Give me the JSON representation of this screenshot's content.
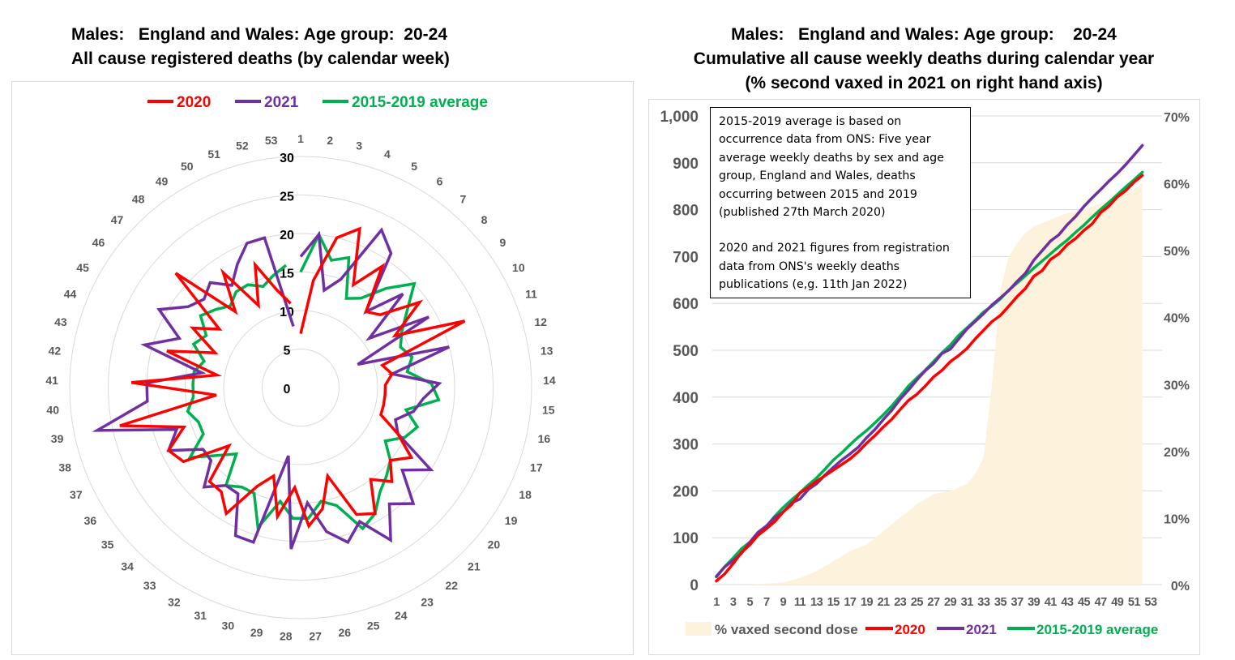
{
  "left_chart": {
    "title_line1": "Males:   England and Wales: Age group:  20-24",
    "title_line2": "All cause registered deaths (by calendar week)"
  },
  "right_chart": {
    "title_line1": "Males:   England and Wales: Age group:    20-24",
    "title_line2": "Cumulative all cause weekly deaths during calendar year",
    "title_line3": "(% second vaxed in 2021 on right hand axis)",
    "note_para1": "2015-2019 average is based on occurrence data from ONS: Five year average weekly deaths by sex and age group, England and Wales, deaths occurring between 2015 and 2019 (published 27th March 2020)",
    "note_para2": "2020 and 2021 figures from registration data from ONS's weekly deaths publications (e,g. 11th Jan 2022)"
  },
  "colors": {
    "2020": "#ff0000",
    "2021": "#7030a0",
    "avg": "#00b050",
    "vax_area": "#fdf3dc",
    "grid": "#d9d9d9",
    "tick": "#595959"
  },
  "chart_data": [
    {
      "type": "radar",
      "title": "Males: England and Wales: Age group: 20-24 — All cause registered deaths (by calendar week)",
      "legend": [
        "2020",
        "2021",
        "2015-2019 average"
      ],
      "legend_position": "top",
      "categories": [
        "1",
        "2",
        "3",
        "4",
        "5",
        "6",
        "7",
        "8",
        "9",
        "10",
        "11",
        "12",
        "13",
        "14",
        "15",
        "16",
        "17",
        "18",
        "19",
        "20",
        "21",
        "22",
        "23",
        "24",
        "25",
        "26",
        "27",
        "28",
        "29",
        "30",
        "31",
        "32",
        "33",
        "34",
        "35",
        "36",
        "37",
        "38",
        "39",
        "40",
        "41",
        "42",
        "43",
        "44",
        "45",
        "46",
        "47",
        "48",
        "49",
        "50",
        "51",
        "52",
        "53"
      ],
      "radial_ticks": [
        "0",
        "5",
        "10",
        "15",
        "20",
        "25",
        "30"
      ],
      "rlim": [
        0,
        30
      ],
      "series": [
        {
          "name": "2020",
          "key": "2020",
          "values": [
            7,
            14,
            20,
            22,
            15,
            19,
            13,
            14,
            19,
            14,
            23,
            11,
            12,
            11,
            11,
            11,
            11,
            14,
            17,
            15,
            17,
            15,
            19,
            18,
            12,
            16,
            18,
            13,
            17,
            12,
            14,
            19,
            17,
            17,
            12,
            18,
            19,
            16,
            24,
            11,
            22,
            11,
            18,
            12,
            16,
            13,
            22,
            13,
            18,
            12,
            17,
            13,
            11
          ]
        },
        {
          "name": "2021",
          "key": "2021",
          "values": [
            17,
            20,
            13,
            15,
            23,
            21,
            13,
            18,
            11,
            19,
            8,
            20,
            12,
            18,
            16,
            15,
            13,
            14,
            20,
            17,
            21,
            19,
            23,
            19,
            21,
            19,
            15,
            21,
            9,
            21,
            21,
            16,
            16,
            18,
            15,
            15,
            19,
            17,
            27,
            20,
            20,
            13,
            21,
            17,
            21,
            18,
            17,
            18,
            16,
            18,
            20,
            20,
            8
          ]
        },
        {
          "name": "2015-2019 average",
          "key": "avg",
          "values": [
            15,
            20,
            17,
            18,
            13,
            14,
            17,
            20,
            17,
            15,
            14,
            15,
            14,
            17,
            18,
            14,
            16,
            15,
            13,
            15,
            16,
            17,
            19,
            20,
            16,
            15,
            17,
            17,
            15,
            19,
            15,
            15,
            16,
            12,
            14,
            17,
            14,
            14,
            15,
            14,
            14,
            14,
            13,
            15,
            14,
            16,
            15,
            14,
            15,
            15,
            14,
            15,
            16
          ]
        }
      ]
    },
    {
      "type": "line+area",
      "title": "Males: England and Wales: Age group: 20-24 — Cumulative all cause weekly deaths during calendar year (% second vaxed in 2021 on right hand axis)",
      "xlabel": "",
      "ylabel": "",
      "y2label": "",
      "x_ticks": [
        "1",
        "3",
        "5",
        "7",
        "9",
        "11",
        "13",
        "15",
        "17",
        "19",
        "21",
        "23",
        "25",
        "27",
        "29",
        "31",
        "33",
        "35",
        "37",
        "39",
        "41",
        "43",
        "45",
        "47",
        "49",
        "51",
        "53"
      ],
      "y_ticks": [
        "0",
        "100",
        "200",
        "300",
        "400",
        "500",
        "600",
        "700",
        "800",
        "900",
        "1,000"
      ],
      "y2_ticks": [
        "0%",
        "10%",
        "20%",
        "30%",
        "40%",
        "50%",
        "60%",
        "70%"
      ],
      "ylim": [
        0,
        1000
      ],
      "y2lim": [
        0,
        0.7
      ],
      "grid": true,
      "legend": [
        "% vaxed second dose",
        "2020",
        "2021",
        "2015-2019 average"
      ],
      "legend_position": "bottom",
      "area_series": {
        "name": "% vaxed second dose",
        "axis": "right",
        "x": [
          1,
          5,
          9,
          11,
          13,
          15,
          17,
          19,
          21,
          23,
          25,
          27,
          29,
          31,
          32,
          33,
          34,
          35,
          36,
          37,
          38,
          39,
          41,
          43,
          45,
          47,
          49,
          51,
          52
        ],
        "values": [
          0,
          0,
          0.003,
          0.01,
          0.02,
          0.035,
          0.05,
          0.06,
          0.08,
          0.1,
          0.12,
          0.135,
          0.14,
          0.15,
          0.165,
          0.19,
          0.3,
          0.44,
          0.49,
          0.51,
          0.525,
          0.535,
          0.545,
          0.555,
          0.56,
          0.57,
          0.58,
          0.59,
          0.6
        ]
      },
      "line_series": [
        {
          "name": "2020",
          "key": "2020",
          "axis": "left",
          "final_cumulative": 873
        },
        {
          "name": "2021",
          "key": "2021",
          "axis": "left",
          "final_cumulative": 937
        },
        {
          "name": "2015-2019 average",
          "key": "avg",
          "axis": "left",
          "final_cumulative": 880
        }
      ],
      "note": "Cumulative lines are running sums of the weekly radar values, scaled to the final totals read from the chart."
    }
  ]
}
